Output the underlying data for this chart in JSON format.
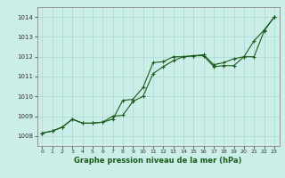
{
  "title": "Graphe pression niveau de la mer (hPa)",
  "bg_color": "#cceee8",
  "grid_color": "#aad8d4",
  "line_color": "#1a5c1a",
  "xlim": [
    -0.5,
    23.5
  ],
  "ylim": [
    1007.5,
    1014.5
  ],
  "yticks": [
    1008,
    1009,
    1010,
    1011,
    1012,
    1013,
    1014
  ],
  "xticks": [
    0,
    1,
    2,
    3,
    4,
    5,
    6,
    7,
    8,
    9,
    10,
    11,
    12,
    13,
    14,
    15,
    16,
    17,
    18,
    19,
    20,
    21,
    22,
    23
  ],
  "series1_x": [
    0,
    1,
    2,
    3,
    4,
    5,
    6,
    7,
    8,
    9,
    10,
    11,
    12,
    13,
    14,
    15,
    16,
    17,
    18,
    19,
    20,
    21,
    22,
    23
  ],
  "series1_y": [
    1008.15,
    1008.25,
    1008.45,
    1008.85,
    1008.65,
    1008.65,
    1008.7,
    1008.85,
    1009.8,
    1009.85,
    1010.45,
    1011.7,
    1011.75,
    1012.0,
    1012.0,
    1012.05,
    1012.05,
    1011.5,
    1011.55,
    1011.55,
    1012.0,
    1012.0,
    1013.3,
    1014.0
  ],
  "series2_x": [
    0,
    1,
    2,
    3,
    4,
    5,
    6,
    7,
    8,
    9,
    10,
    11,
    12,
    13,
    14,
    15,
    16,
    17,
    18,
    19,
    20,
    21,
    22,
    23
  ],
  "series2_y": [
    1008.15,
    1008.25,
    1008.45,
    1008.85,
    1008.65,
    1008.65,
    1008.7,
    1009.0,
    1009.05,
    1009.75,
    1010.0,
    1011.15,
    1011.5,
    1011.8,
    1012.0,
    1012.05,
    1012.1,
    1011.6,
    1011.7,
    1011.9,
    1012.0,
    1012.8,
    1013.35,
    1014.0
  ]
}
